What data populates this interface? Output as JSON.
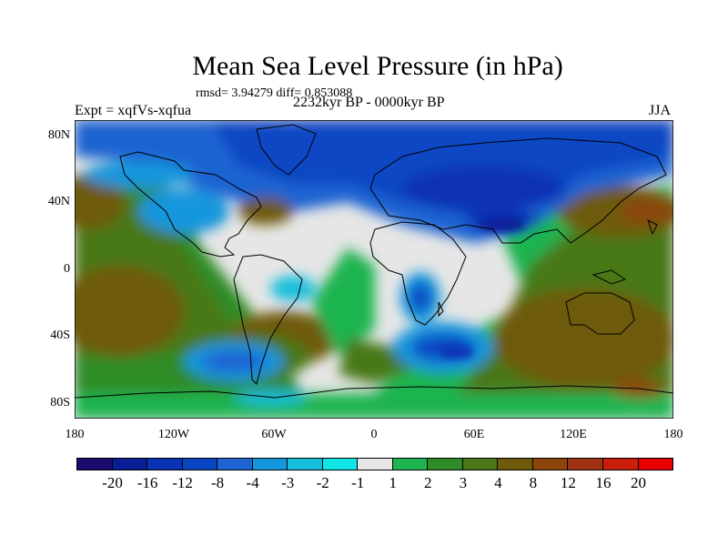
{
  "title": "Mean Sea Level Pressure (in hPa)",
  "stats": "rmsd= 3.94279 diff= 0.853088",
  "expt": "Expt = xqfVs-xqfua",
  "period": "2232kyr BP - 0000kyr BP",
  "season": "JJA",
  "lat_labels": [
    "80N",
    "40N",
    "0",
    "40S",
    "80S"
  ],
  "lon_labels": [
    "180",
    "120W",
    "60W",
    "0",
    "60E",
    "120E",
    "180"
  ],
  "colorbar": {
    "colors": [
      "#1d0a6e",
      "#0a1e96",
      "#0a32b4",
      "#0a46c3",
      "#1e64d2",
      "#1496dc",
      "#14bedc",
      "#10e6e6",
      "#e6e6e6",
      "#1eb450",
      "#2d8c28",
      "#4a7818",
      "#6e5a0a",
      "#8c460a",
      "#a03214",
      "#c81e0a",
      "#e60000"
    ],
    "labels": [
      "-20",
      "-16",
      "-12",
      "-8",
      "-4",
      "-3",
      "-2",
      "-1",
      "1",
      "2",
      "3",
      "4",
      "8",
      "12",
      "16",
      "20"
    ]
  }
}
